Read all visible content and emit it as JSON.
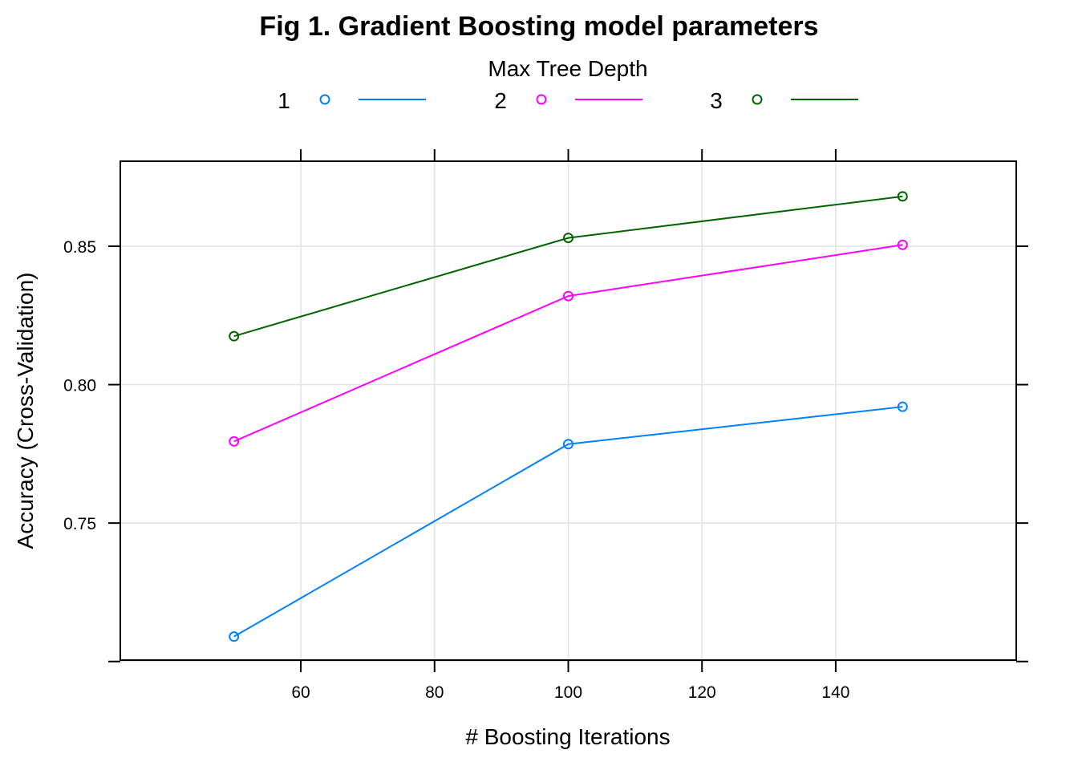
{
  "chart_data": {
    "type": "line",
    "title": "Fig 1. Gradient Boosting model parameters",
    "legend_title": "Max Tree Depth",
    "legend_position": "top",
    "xlabel": "# Boosting Iterations",
    "ylabel": "Accuracy (Cross-Validation)",
    "x": [
      50,
      100,
      150
    ],
    "xlim": [
      33,
      167
    ],
    "ylim": [
      0.7005,
      0.8807
    ],
    "xticks": [
      60,
      80,
      100,
      120,
      140
    ],
    "xtick_labels": [
      "60",
      "80",
      "100",
      "120",
      "140"
    ],
    "yticks": [
      0.7,
      0.75,
      0.8,
      0.85
    ],
    "ytick_labels": [
      "",
      "0.75",
      "0.80",
      "0.85"
    ],
    "grid": true,
    "series": [
      {
        "name": "1",
        "color": "#0080ff",
        "values": [
          0.709,
          0.7785,
          0.792
        ]
      },
      {
        "name": "2",
        "color": "#ff00ff",
        "values": [
          0.7795,
          0.832,
          0.8505
        ]
      },
      {
        "name": "3",
        "color": "#006400",
        "values": [
          0.8175,
          0.853,
          0.868
        ]
      }
    ]
  }
}
